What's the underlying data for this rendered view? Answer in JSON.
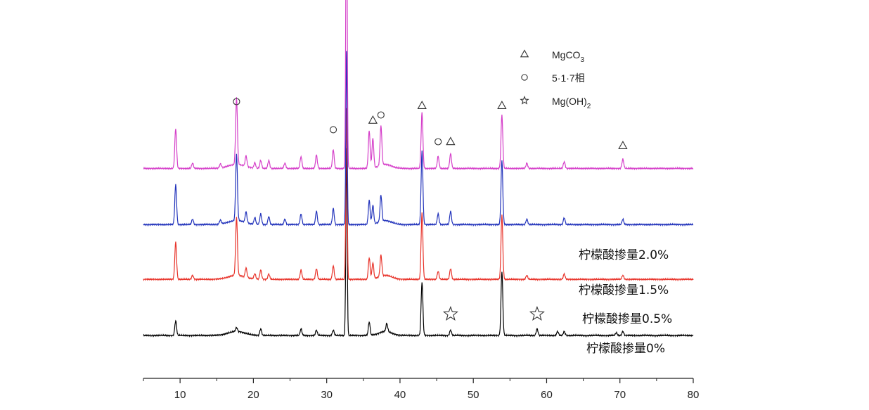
{
  "chart_data": {
    "type": "line",
    "title": "",
    "xlabel": "",
    "ylabel": "",
    "xlim": [
      5,
      80
    ],
    "x_ticks": [
      10,
      20,
      30,
      40,
      50,
      60,
      70,
      80
    ],
    "y_axis_shown": false,
    "grid": false,
    "legend": {
      "placement": "top-right",
      "entries": [
        {
          "symbol": "triangle",
          "text": "MgCO",
          "sub": "3"
        },
        {
          "symbol": "circle",
          "text": "5·1·7相",
          "sub": ""
        },
        {
          "symbol": "star",
          "text": "Mg(OH)",
          "sub": "2"
        }
      ]
    },
    "series": [
      {
        "name": "柠檬酸掺量0%",
        "color": "#000000",
        "baseline": 0,
        "peaks": [
          [
            9.4,
            11
          ],
          [
            17.7,
            3
          ],
          [
            21.0,
            5
          ],
          [
            26.5,
            5
          ],
          [
            28.6,
            4
          ],
          [
            30.9,
            4
          ],
          [
            32.7,
            140
          ],
          [
            35.8,
            10
          ],
          [
            38.2,
            6
          ],
          [
            43.0,
            40
          ],
          [
            46.9,
            4
          ],
          [
            53.9,
            48
          ],
          [
            58.7,
            5
          ],
          [
            61.5,
            3
          ],
          [
            62.4,
            3
          ],
          [
            69.5,
            2
          ],
          [
            70.4,
            3
          ]
        ]
      },
      {
        "name": "柠檬酸掺量0.5%",
        "color": "#e8332a",
        "baseline": 42,
        "peaks": [
          [
            9.4,
            28
          ],
          [
            11.7,
            3
          ],
          [
            17.7,
            44
          ],
          [
            19.0,
            7
          ],
          [
            20.2,
            4
          ],
          [
            21.0,
            7
          ],
          [
            22.1,
            4
          ],
          [
            26.5,
            7
          ],
          [
            28.6,
            8
          ],
          [
            30.9,
            10
          ],
          [
            32.7,
            128
          ],
          [
            35.8,
            16
          ],
          [
            36.3,
            12
          ],
          [
            37.4,
            16
          ],
          [
            43.0,
            50
          ],
          [
            45.2,
            6
          ],
          [
            46.9,
            8
          ],
          [
            53.9,
            48
          ],
          [
            57.3,
            3
          ],
          [
            62.4,
            4
          ],
          [
            70.4,
            3
          ]
        ]
      },
      {
        "name": "柠檬酸掺量1.5%",
        "color": "#2233bb",
        "baseline": 83,
        "peaks": [
          [
            9.4,
            30
          ],
          [
            11.7,
            4
          ],
          [
            15.5,
            3
          ],
          [
            17.7,
            50
          ],
          [
            19.0,
            8
          ],
          [
            20.2,
            5
          ],
          [
            21.0,
            8
          ],
          [
            22.1,
            6
          ],
          [
            24.3,
            4
          ],
          [
            26.5,
            8
          ],
          [
            28.6,
            10
          ],
          [
            30.9,
            12
          ],
          [
            32.7,
            130
          ],
          [
            35.8,
            18
          ],
          [
            36.3,
            14
          ],
          [
            37.4,
            20
          ],
          [
            43.0,
            55
          ],
          [
            45.2,
            8
          ],
          [
            46.9,
            10
          ],
          [
            53.9,
            48
          ],
          [
            57.3,
            4
          ],
          [
            62.4,
            5
          ],
          [
            70.4,
            4
          ]
        ]
      },
      {
        "name": "柠檬酸掺量2.0%",
        "color": "#d53fc9",
        "baseline": 125,
        "peaks": [
          [
            9.4,
            30
          ],
          [
            11.7,
            4
          ],
          [
            15.5,
            3
          ],
          [
            17.7,
            50
          ],
          [
            19.0,
            8
          ],
          [
            20.2,
            4
          ],
          [
            21.0,
            6
          ],
          [
            22.1,
            6
          ],
          [
            24.3,
            4
          ],
          [
            26.5,
            9
          ],
          [
            28.6,
            10
          ],
          [
            30.9,
            14
          ],
          [
            32.7,
            235
          ],
          [
            35.8,
            28
          ],
          [
            36.3,
            22
          ],
          [
            37.4,
            30
          ],
          [
            43.0,
            42
          ],
          [
            45.2,
            9
          ],
          [
            46.9,
            11
          ],
          [
            53.9,
            40
          ],
          [
            57.3,
            4
          ],
          [
            62.4,
            5
          ],
          [
            70.4,
            7
          ]
        ]
      }
    ],
    "annotations": [
      {
        "symbol": "triangle",
        "x": 32.7,
        "y": 365
      },
      {
        "symbol": "circle",
        "x": 17.7,
        "y": 175
      },
      {
        "symbol": "circle",
        "x": 30.9,
        "y": 154
      },
      {
        "symbol": "triangle",
        "x": 36.3,
        "y": 161
      },
      {
        "symbol": "circle",
        "x": 37.4,
        "y": 165
      },
      {
        "symbol": "triangle",
        "x": 43.0,
        "y": 172
      },
      {
        "symbol": "circle",
        "x": 45.2,
        "y": 145
      },
      {
        "symbol": "triangle",
        "x": 46.9,
        "y": 145
      },
      {
        "symbol": "triangle",
        "x": 53.9,
        "y": 172
      },
      {
        "symbol": "triangle",
        "x": 70.4,
        "y": 142
      },
      {
        "symbol": "star",
        "x": 46.9,
        "y": 16
      },
      {
        "symbol": "star",
        "x": 58.7,
        "y": 16
      }
    ]
  }
}
